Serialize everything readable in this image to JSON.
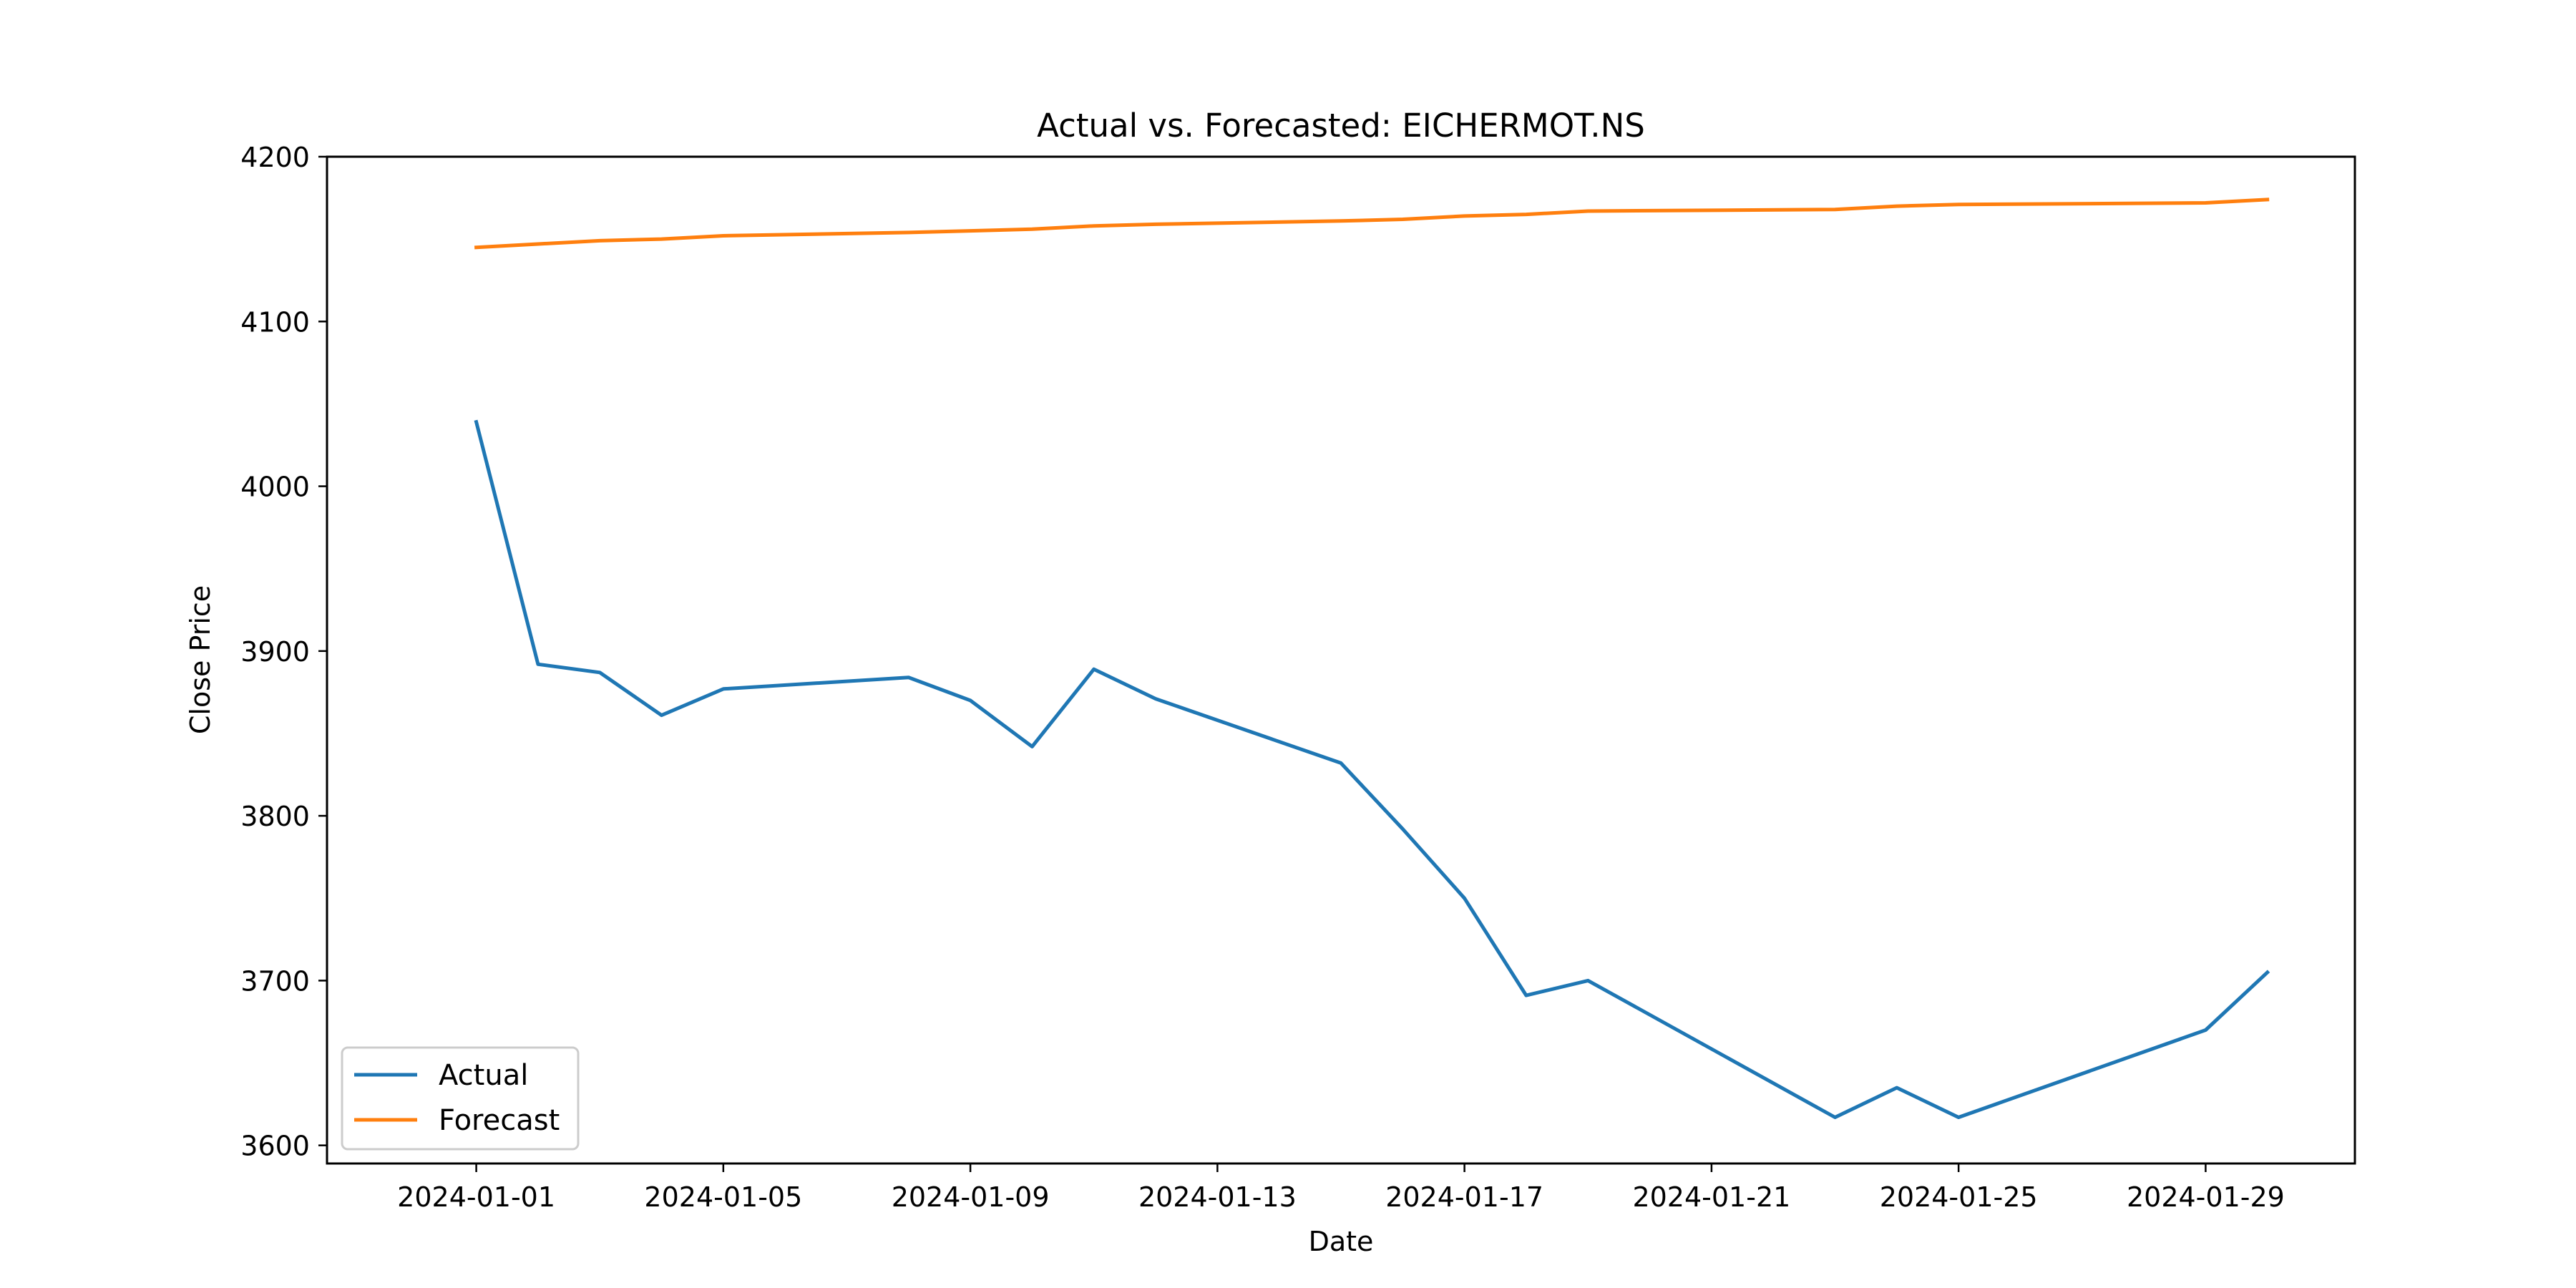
{
  "chart_data": {
    "type": "line",
    "title": "Actual vs. Forecasted: EICHERMOT.NS",
    "xlabel": "Date",
    "ylabel": "Close Price",
    "xlim": [
      "2023-12-29T14:00",
      "2024-01-31T10:00"
    ],
    "ylim": [
      3589,
      4200
    ],
    "x_ticks": [
      "2024-01-01",
      "2024-01-05",
      "2024-01-09",
      "2024-01-13",
      "2024-01-17",
      "2024-01-21",
      "2024-01-25",
      "2024-01-29"
    ],
    "y_ticks": [
      3600,
      3700,
      3800,
      3900,
      4000,
      4100,
      4200
    ],
    "grid": false,
    "legend_position": "lower-left",
    "series": [
      {
        "name": "Actual",
        "color": "#1f77b4",
        "points": [
          {
            "x": "2024-01-01",
            "y": 4039
          },
          {
            "x": "2024-01-02",
            "y": 3892
          },
          {
            "x": "2024-01-03",
            "y": 3887
          },
          {
            "x": "2024-01-04",
            "y": 3861
          },
          {
            "x": "2024-01-05",
            "y": 3877
          },
          {
            "x": "2024-01-08",
            "y": 3884
          },
          {
            "x": "2024-01-09",
            "y": 3870
          },
          {
            "x": "2024-01-10",
            "y": 3842
          },
          {
            "x": "2024-01-11",
            "y": 3889
          },
          {
            "x": "2024-01-12",
            "y": 3871
          },
          {
            "x": "2024-01-15",
            "y": 3832
          },
          {
            "x": "2024-01-16",
            "y": 3792
          },
          {
            "x": "2024-01-17",
            "y": 3750
          },
          {
            "x": "2024-01-18",
            "y": 3691
          },
          {
            "x": "2024-01-19",
            "y": 3700
          },
          {
            "x": "2024-01-23",
            "y": 3617
          },
          {
            "x": "2024-01-24",
            "y": 3635
          },
          {
            "x": "2024-01-25",
            "y": 3617
          },
          {
            "x": "2024-01-29",
            "y": 3670
          },
          {
            "x": "2024-01-30",
            "y": 3705
          }
        ]
      },
      {
        "name": "Forecast",
        "color": "#ff7f0e",
        "points": [
          {
            "x": "2024-01-01",
            "y": 4145
          },
          {
            "x": "2024-01-02",
            "y": 4147
          },
          {
            "x": "2024-01-03",
            "y": 4149
          },
          {
            "x": "2024-01-04",
            "y": 4150
          },
          {
            "x": "2024-01-05",
            "y": 4152
          },
          {
            "x": "2024-01-08",
            "y": 4154
          },
          {
            "x": "2024-01-09",
            "y": 4155
          },
          {
            "x": "2024-01-10",
            "y": 4156
          },
          {
            "x": "2024-01-11",
            "y": 4158
          },
          {
            "x": "2024-01-12",
            "y": 4159
          },
          {
            "x": "2024-01-15",
            "y": 4161
          },
          {
            "x": "2024-01-16",
            "y": 4162
          },
          {
            "x": "2024-01-17",
            "y": 4164
          },
          {
            "x": "2024-01-18",
            "y": 4165
          },
          {
            "x": "2024-01-19",
            "y": 4167
          },
          {
            "x": "2024-01-23",
            "y": 4168
          },
          {
            "x": "2024-01-24",
            "y": 4170
          },
          {
            "x": "2024-01-25",
            "y": 4171
          },
          {
            "x": "2024-01-29",
            "y": 4172
          },
          {
            "x": "2024-01-30",
            "y": 4174
          }
        ]
      }
    ]
  }
}
